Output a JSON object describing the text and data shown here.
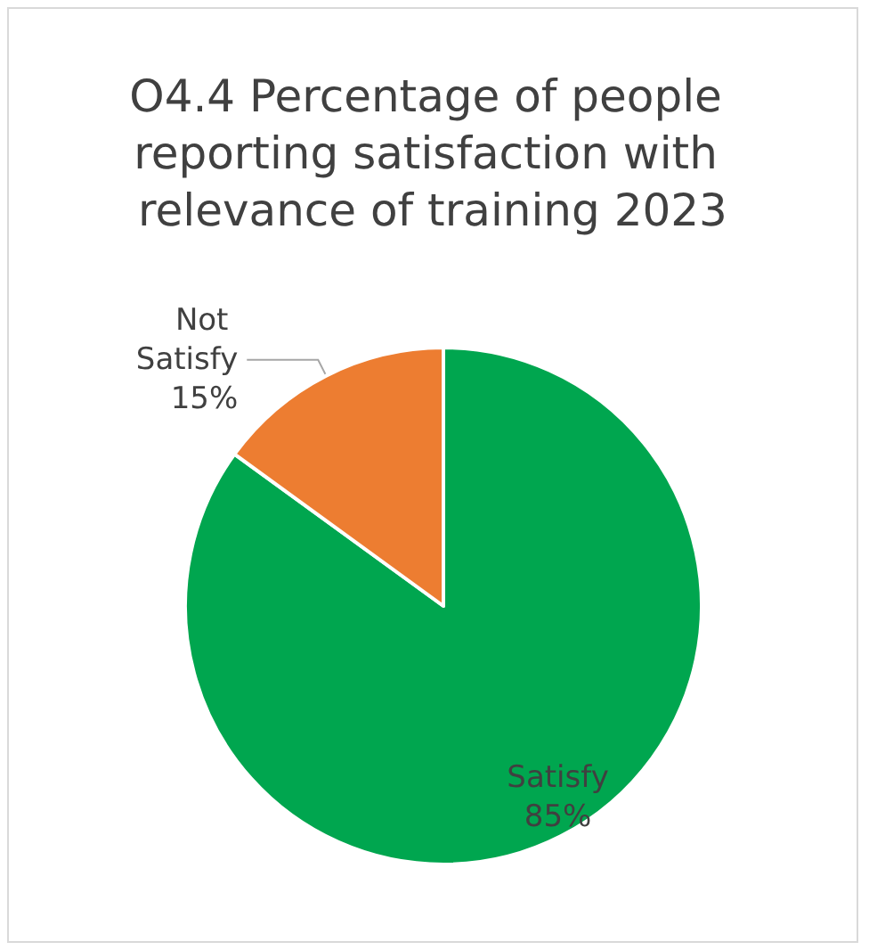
{
  "chart_data": {
    "type": "pie",
    "title": "O4.4 Percentage of people reporting satisfaction with relevance of training 2023",
    "categories": [
      "Satisfy",
      "Not Satisfy"
    ],
    "values": [
      85,
      15
    ],
    "colors": [
      "#00a64f",
      "#ed7d31"
    ],
    "value_labels": [
      "85%",
      "15%"
    ],
    "legend": false
  }
}
